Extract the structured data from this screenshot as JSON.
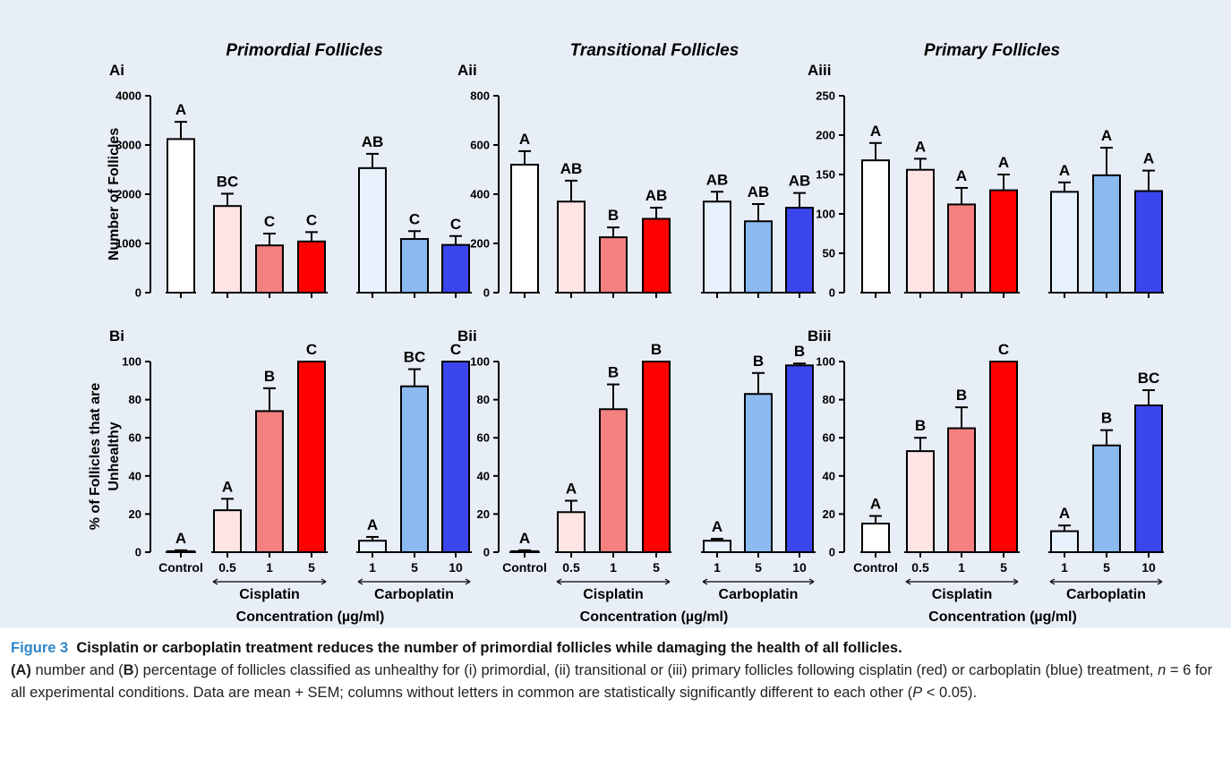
{
  "colors": {
    "control": "#ffffff",
    "cis_0_5": "#ffe4e4",
    "cis_1": "#f58080",
    "cis_5": "#ff0000",
    "carbo_1": "#e8f2fd",
    "carbo_5": "#8bbaf0",
    "carbo_10": "#3b45ee",
    "panel_bg": "#e8eef6",
    "caption_accent": "#2f86c8"
  },
  "figure": {
    "col_titles": [
      "Primordial Follicles",
      "Transitional Follicles",
      "Primary Follicles"
    ],
    "row_a_ylabel": "Number of Follicles",
    "row_b_ylabel_line1": "% of Follicles that are",
    "row_b_ylabel_line2": "Unhealthy",
    "group_labels": [
      "Cisplatin",
      "Carboplatin"
    ],
    "x_axis_title": "Concentration (µg/ml)"
  },
  "chart_data": [
    {
      "type": "bar",
      "panel": "Ai",
      "title": "Primordial Follicles",
      "ylabel": "Number of Follicles",
      "categories": [
        "Control",
        "0.5",
        "1",
        "5",
        "1",
        "5",
        "10"
      ],
      "values": [
        3120,
        1760,
        960,
        1040,
        2530,
        1090,
        970
      ],
      "errors": [
        350,
        250,
        240,
        190,
        290,
        160,
        180
      ],
      "letters": [
        "A",
        "BC",
        "C",
        "C",
        "AB",
        "C",
        "C"
      ],
      "ylim": [
        0,
        4000
      ],
      "yticks": [
        "0",
        "1000",
        "2000",
        "3000",
        "4000"
      ]
    },
    {
      "type": "bar",
      "panel": "Aii",
      "title": "Transitional Follicles",
      "categories": [
        "Control",
        "0.5",
        "1",
        "5",
        "1",
        "5",
        "10"
      ],
      "values": [
        520,
        370,
        225,
        300,
        370,
        290,
        345
      ],
      "errors": [
        55,
        85,
        40,
        45,
        40,
        70,
        60
      ],
      "letters": [
        "A",
        "AB",
        "B",
        "AB",
        "AB",
        "AB",
        "AB"
      ],
      "ylim": [
        0,
        800
      ],
      "yticks": [
        "0",
        "200",
        "400",
        "600",
        "800"
      ]
    },
    {
      "type": "bar",
      "panel": "Aiii",
      "title": "Primary Follicles",
      "categories": [
        "Control",
        "0.5",
        "1",
        "5",
        "1",
        "5",
        "10"
      ],
      "values": [
        168,
        156,
        112,
        130,
        128,
        149,
        129
      ],
      "errors": [
        22,
        14,
        21,
        20,
        12,
        35,
        26
      ],
      "letters": [
        "A",
        "A",
        "A",
        "A",
        "A",
        "A",
        "A"
      ],
      "ylim": [
        0,
        250
      ],
      "yticks": [
        "0",
        "50",
        "100",
        "150",
        "200",
        "250"
      ]
    },
    {
      "type": "bar",
      "panel": "Bi",
      "ylabel": "% of Follicles that are Unhealthy",
      "categories": [
        "Control",
        "0.5",
        "1",
        "5",
        "1",
        "5",
        "10"
      ],
      "values": [
        0.5,
        22,
        74,
        100,
        6,
        87,
        100
      ],
      "errors": [
        0.5,
        6,
        12,
        0,
        2,
        9,
        0
      ],
      "letters": [
        "A",
        "A",
        "B",
        "C",
        "A",
        "BC",
        "C"
      ],
      "ylim": [
        0,
        100
      ],
      "yticks": [
        "0",
        "20",
        "40",
        "60",
        "80",
        "100"
      ]
    },
    {
      "type": "bar",
      "panel": "Bii",
      "categories": [
        "Control",
        "0.5",
        "1",
        "5",
        "1",
        "5",
        "10"
      ],
      "values": [
        0.5,
        21,
        75,
        100,
        6,
        83,
        98
      ],
      "errors": [
        0.5,
        6,
        13,
        0,
        1,
        11,
        1
      ],
      "letters": [
        "A",
        "A",
        "B",
        "B",
        "A",
        "B",
        "B"
      ],
      "ylim": [
        0,
        100
      ],
      "yticks": [
        "0",
        "20",
        "40",
        "60",
        "80",
        "100"
      ]
    },
    {
      "type": "bar",
      "panel": "Biii",
      "categories": [
        "Control",
        "0.5",
        "1",
        "5",
        "1",
        "5",
        "10"
      ],
      "values": [
        15,
        53,
        65,
        100,
        11,
        56,
        77
      ],
      "errors": [
        4,
        7,
        11,
        0,
        3,
        8,
        8
      ],
      "letters": [
        "A",
        "B",
        "B",
        "C",
        "A",
        "B",
        "BC"
      ],
      "ylim": [
        0,
        100
      ],
      "yticks": [
        "0",
        "20",
        "40",
        "60",
        "80",
        "100"
      ]
    }
  ],
  "caption": {
    "fig_num": "Figure 3",
    "title": "Cisplatin or carboplatin treatment reduces the number of primordial follicles while damaging the health of all follicles.",
    "p1_a": "(A)",
    "p1_b": " number and (",
    "p1_c": "B",
    "p1_d": ") percentage of follicles classified as unhealthy for (i) primordial, (ii) transitional or (iii) primary follicles following cisplatin (red) or carboplatin (blue) treatment, ",
    "p1_n": "n",
    "p1_e": " = 6 for all experimental conditions. Data are mean + SEM; columns without letters in common are statistically significantly different to each other (",
    "p1_p": "P",
    "p1_f": " < 0.05)."
  }
}
